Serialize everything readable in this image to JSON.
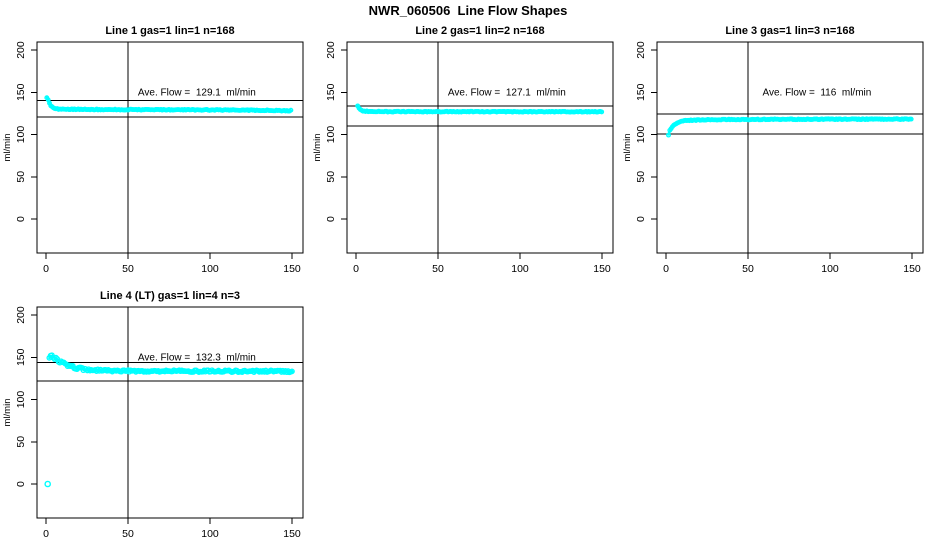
{
  "header": {
    "title": "NWR_060506  Line Flow Shapes"
  },
  "chart_data": {
    "type": "scatter",
    "title": "NWR_060506  Line Flow Shapes",
    "marker_color": "#00FFFF",
    "axis_color": "#000000",
    "xlim": [
      -5.5,
      156.7
    ],
    "ylim": [
      -40.2,
      209.5
    ],
    "xticks": [
      0,
      50,
      100,
      150
    ],
    "yticks": [
      0,
      50,
      100,
      150,
      200
    ],
    "ylabel": "ml/min",
    "legend": "none",
    "grid": false,
    "plots": [
      {
        "title": "Line 1 gas=1 lin=1 n=168",
        "annotation": "Ave. Flow =  129.1  ml/min",
        "ave_flow": 129.1,
        "n": 168,
        "vline_x": 50,
        "ref_lines": [
          140,
          121
        ],
        "noise": 0.55,
        "noise_boost": {
          "until": 0,
          "amp": 1
        },
        "marker_r": 1.8,
        "outliers": [],
        "anchors": [
          [
            0.5,
            144
          ],
          [
            1,
            142.5
          ],
          [
            2,
            137.5
          ],
          [
            3,
            134
          ],
          [
            4,
            132
          ],
          [
            5,
            131
          ],
          [
            7,
            130.3
          ],
          [
            10,
            130
          ],
          [
            15,
            129.9
          ],
          [
            20,
            129.8
          ],
          [
            30,
            129.6
          ],
          [
            40,
            129.5
          ],
          [
            60,
            129.4
          ],
          [
            80,
            129.3
          ],
          [
            100,
            129.1
          ],
          [
            120,
            128.9
          ],
          [
            135,
            128.6
          ],
          [
            150,
            128.2
          ]
        ]
      },
      {
        "title": "Line 2 gas=1 lin=2 n=168",
        "annotation": "Ave. Flow =  127.1  ml/min",
        "ave_flow": 127.1,
        "n": 168,
        "vline_x": 50,
        "ref_lines": [
          134,
          110
        ],
        "noise": 0.45,
        "noise_boost": {
          "until": 0,
          "amp": 1
        },
        "marker_r": 1.8,
        "outliers": [],
        "anchors": [
          [
            1,
            134
          ],
          [
            2,
            130.5
          ],
          [
            3,
            128.8
          ],
          [
            4,
            128
          ],
          [
            6,
            127.5
          ],
          [
            8,
            127.3
          ],
          [
            12,
            127.2
          ],
          [
            20,
            127.1
          ],
          [
            40,
            127.1
          ],
          [
            70,
            127
          ],
          [
            100,
            127
          ],
          [
            130,
            127
          ],
          [
            150,
            127
          ]
        ]
      },
      {
        "title": "Line 3 gas=1 lin=3 n=168",
        "annotation": "Ave. Flow =  116  ml/min",
        "ave_flow": 116,
        "n": 168,
        "vline_x": 50,
        "ref_lines": [
          124,
          100.5
        ],
        "noise": 0.5,
        "noise_boost": {
          "until": 5,
          "amp": 2
        },
        "marker_r": 1.8,
        "outliers": [],
        "anchors": [
          [
            1.5,
            100
          ],
          [
            2,
            103
          ],
          [
            3,
            107
          ],
          [
            4,
            110
          ],
          [
            6,
            113
          ],
          [
            8,
            115
          ],
          [
            12,
            116.5
          ],
          [
            20,
            117.3
          ],
          [
            35,
            117.7
          ],
          [
            60,
            117.9
          ],
          [
            100,
            118.1
          ],
          [
            150,
            118.3
          ]
        ]
      },
      {
        "title": "Line 4 (LT) gas=1 lin=4 n=3",
        "annotation": "Ave. Flow =  132.3  ml/min",
        "ave_flow": 132.3,
        "n": 3,
        "vline_x": 50,
        "ref_lines": [
          144,
          122
        ],
        "noise": 1.1,
        "noise_boost": {
          "until": 26,
          "amp": 1.6
        },
        "marker_r": 2.2,
        "outliers": [
          [
            1,
            0
          ]
        ],
        "anchors": [
          [
            2,
            149
          ],
          [
            3,
            152
          ],
          [
            4,
            151
          ],
          [
            5,
            149.5
          ],
          [
            7,
            147
          ],
          [
            9,
            144.5
          ],
          [
            11,
            142.5
          ],
          [
            14,
            140
          ],
          [
            17,
            138
          ],
          [
            20,
            136.5
          ],
          [
            24,
            135.5
          ],
          [
            28,
            134.8
          ],
          [
            33,
            134.4
          ],
          [
            40,
            134
          ],
          [
            50,
            133.8
          ],
          [
            60,
            133.6
          ],
          [
            75,
            133.8
          ],
          [
            90,
            133.5
          ],
          [
            105,
            133.7
          ],
          [
            120,
            133.3
          ],
          [
            135,
            133.6
          ],
          [
            150,
            133.2
          ]
        ]
      }
    ]
  }
}
